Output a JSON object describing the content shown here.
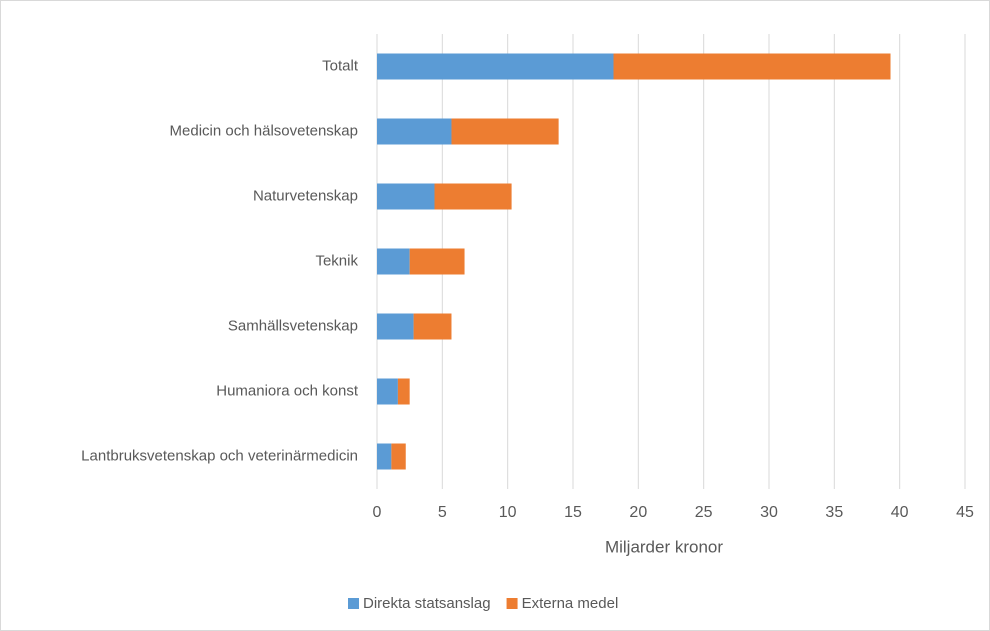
{
  "chart_data": {
    "type": "bar",
    "orientation": "horizontal",
    "stacked": true,
    "categories": [
      "Totalt",
      "Medicin och hälsovetenskap",
      "Naturvetenskap",
      "Teknik",
      "Samhällsvetenskap",
      "Humaniora och konst",
      "Lantbruksvetenskap och veterinärmedicin"
    ],
    "series": [
      {
        "name": "Direkta statsanslag",
        "color": "#5b9bd5",
        "values": [
          18.1,
          5.7,
          4.4,
          2.5,
          2.8,
          1.6,
          1.1
        ]
      },
      {
        "name": "Externa medel",
        "color": "#ed7d31",
        "values": [
          21.2,
          8.2,
          5.9,
          4.2,
          2.9,
          0.9,
          1.1
        ]
      }
    ],
    "x_label": "Miljarder kronor",
    "xlim": [
      0,
      45
    ],
    "xticks": [
      0,
      5,
      10,
      15,
      20,
      25,
      30,
      35,
      40,
      45
    ],
    "grid": true,
    "legend": "bottom"
  }
}
